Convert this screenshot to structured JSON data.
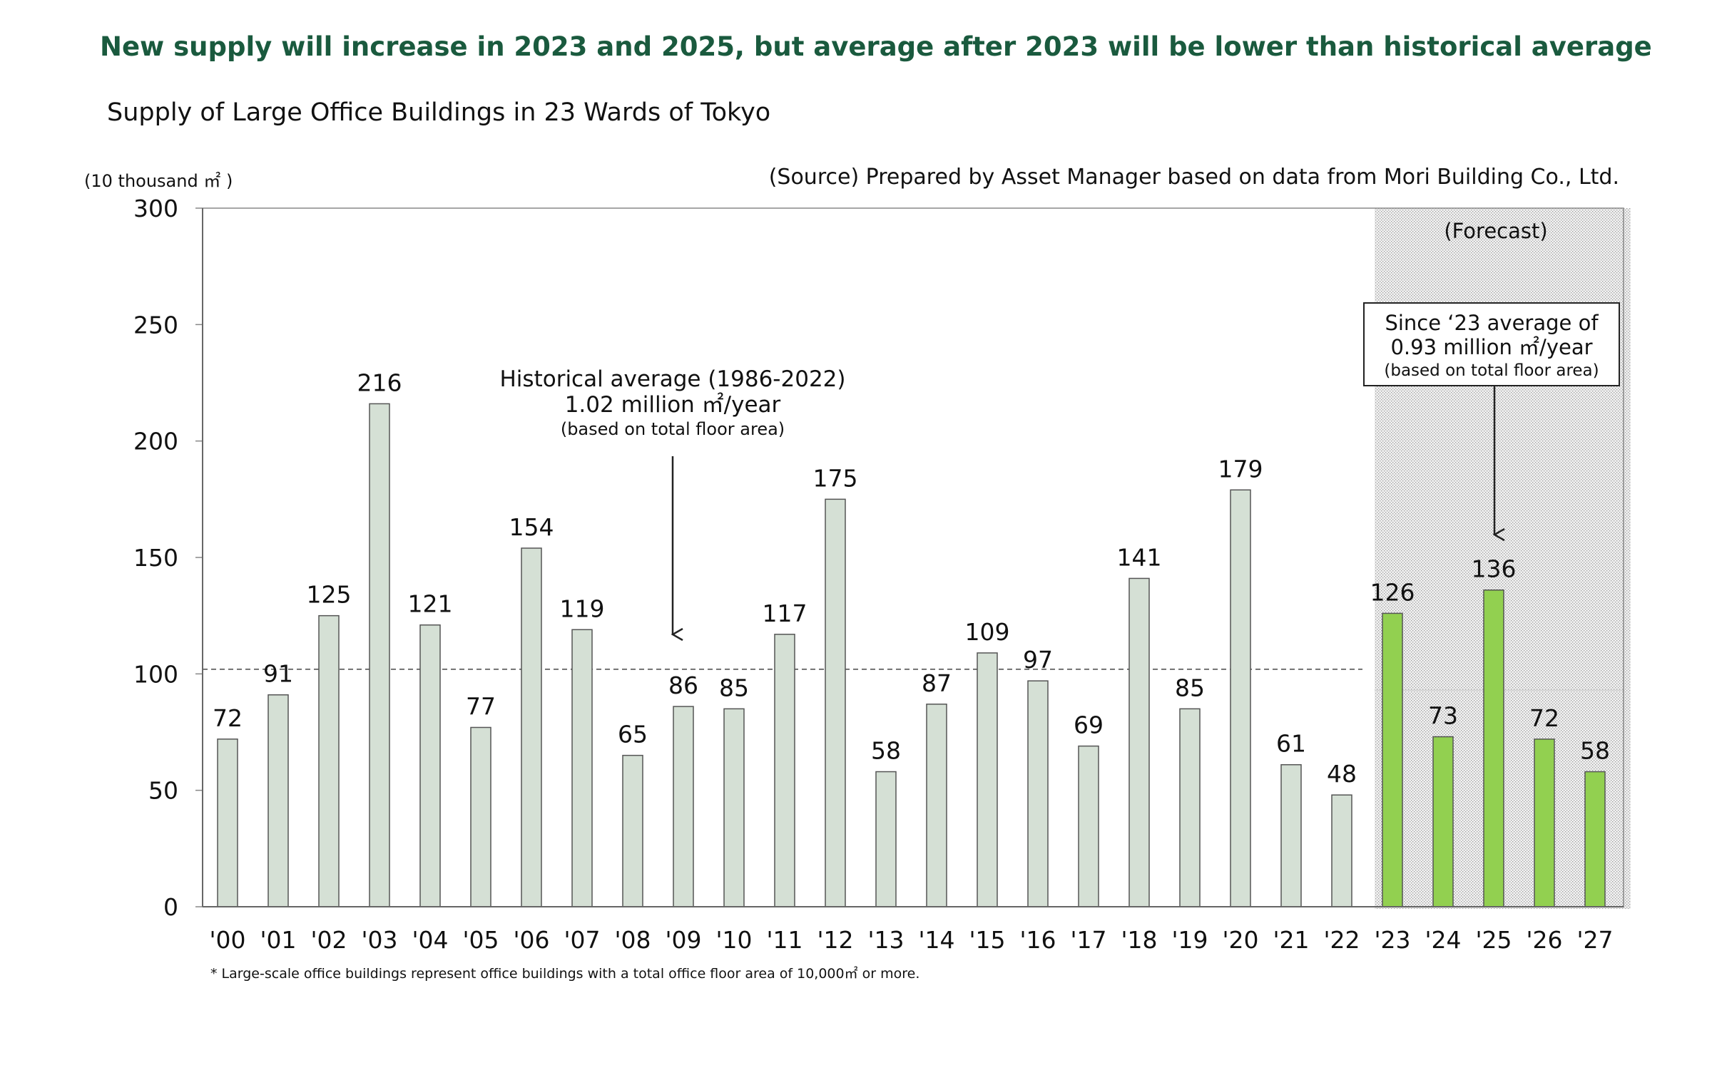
{
  "headline": "New supply will increase in 2023 and 2025, but average after 2023 will be lower than historical average",
  "chart_data": {
    "type": "bar",
    "title": "Supply of Large Office Buildings in 23 Wards of Tokyo",
    "unit_label": "(10 thousand ㎡ )",
    "source": "(Source) Prepared by Asset Manager based on data from Mori Building Co., Ltd.",
    "footnote": "* Large-scale office buildings represent office buildings with a total office floor area of 10,000㎡ or more.",
    "categories": [
      "'00",
      "'01",
      "'02",
      "'03",
      "'04",
      "'05",
      "'06",
      "'07",
      "'08",
      "'09",
      "'10",
      "'11",
      "'12",
      "'13",
      "'14",
      "'15",
      "'16",
      "'17",
      "'18",
      "'19",
      "'20",
      "'21",
      "'22",
      "'23",
      "'24",
      "'25",
      "'26",
      "'27"
    ],
    "values": [
      72,
      91,
      125,
      216,
      121,
      77,
      154,
      119,
      65,
      86,
      85,
      117,
      175,
      58,
      87,
      109,
      97,
      69,
      141,
      85,
      179,
      61,
      48,
      126,
      73,
      136,
      72,
      58
    ],
    "forecast_start_index": 23,
    "ylim": [
      0,
      300
    ],
    "yticks": [
      0,
      50,
      100,
      150,
      200,
      250,
      300
    ],
    "historical_average": {
      "value": 102,
      "label_line1": "Historical average (1986-2022)",
      "label_line2": "1.02 million ㎡/year",
      "label_line3": "(based on total floor area)"
    },
    "forecast_average": {
      "value": 93,
      "label_line1": "Since ‘23 average of",
      "label_line2": "0.93 million ㎡/year",
      "label_line3": "(based on total floor area)"
    },
    "forecast_label": "(Forecast)",
    "colors": {
      "historical_bar": "#d5e0d5",
      "forecast_bar": "#92d050",
      "bar_outline": "#555555",
      "headline": "#1a5a3e"
    },
    "grid": false
  }
}
